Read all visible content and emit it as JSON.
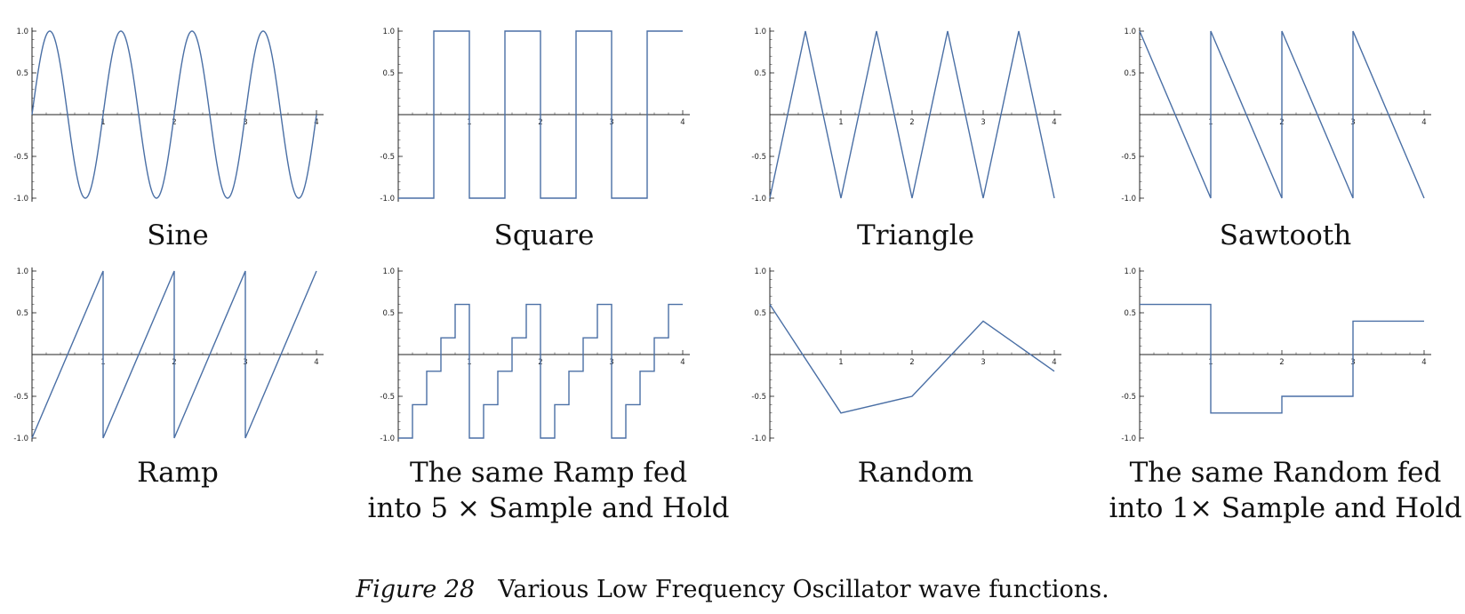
{
  "figure": {
    "label": "Figure 28",
    "caption": "Various Low Frequency Oscillator wave functions."
  },
  "style": {
    "line_color": "#4a6fa5",
    "axis_color": "#222222"
  },
  "chart_data": [
    {
      "type": "line",
      "caption_lines": [
        "Sine"
      ],
      "xlim": [
        0,
        4
      ],
      "ylim": [
        -1,
        1
      ],
      "x_ticks": [
        "1",
        "2",
        "3",
        "4"
      ],
      "y_ticks": [
        "1.0",
        "0.5",
        "-0.5",
        "-1.0"
      ],
      "function": "sin(2*pi*x)",
      "series": [
        {
          "values": []
        }
      ]
    },
    {
      "type": "line",
      "caption_lines": [
        "Square"
      ],
      "xlim": [
        0,
        4
      ],
      "ylim": [
        -1,
        1
      ],
      "x_ticks": [
        "1",
        "2",
        "3",
        "4"
      ],
      "y_ticks": [
        "1.0",
        "0.5",
        "-0.5",
        "-1.0"
      ],
      "series": [
        {
          "x": [
            0,
            0.5,
            0.5,
            1,
            1,
            1.5,
            1.5,
            2,
            2,
            2.5,
            2.5,
            3,
            3,
            3.5,
            3.5,
            4
          ],
          "y": [
            -1,
            -1,
            1,
            1,
            -1,
            -1,
            1,
            1,
            -1,
            -1,
            1,
            1,
            -1,
            -1,
            1,
            1
          ]
        }
      ]
    },
    {
      "type": "line",
      "caption_lines": [
        "Triangle"
      ],
      "xlim": [
        0,
        4
      ],
      "ylim": [
        -1,
        1
      ],
      "x_ticks": [
        "1",
        "2",
        "3",
        "4"
      ],
      "y_ticks": [
        "1.0",
        "0.5",
        "-0.5",
        "-1.0"
      ],
      "series": [
        {
          "x": [
            0,
            0.5,
            1,
            1.5,
            2,
            2.5,
            3,
            3.5,
            4
          ],
          "y": [
            -1,
            1,
            -1,
            1,
            -1,
            1,
            -1,
            1,
            -1
          ]
        }
      ]
    },
    {
      "type": "line",
      "caption_lines": [
        "Sawtooth"
      ],
      "xlim": [
        0,
        4
      ],
      "ylim": [
        -1,
        1
      ],
      "x_ticks": [
        "1",
        "2",
        "3",
        "4"
      ],
      "y_ticks": [
        "1.0",
        "0.5",
        "-0.5",
        "-1.0"
      ],
      "series": [
        {
          "x": [
            0,
            1,
            1,
            2,
            2,
            3,
            3,
            4
          ],
          "y": [
            1,
            -1,
            1,
            -1,
            1,
            -1,
            1,
            -1
          ]
        }
      ]
    },
    {
      "type": "line",
      "caption_lines": [
        "Ramp"
      ],
      "xlim": [
        0,
        4
      ],
      "ylim": [
        -1,
        1
      ],
      "x_ticks": [
        "1",
        "2",
        "3",
        "4"
      ],
      "y_ticks": [
        "1.0",
        "0.5",
        "-0.5",
        "-1.0"
      ],
      "series": [
        {
          "x": [
            0,
            1,
            1,
            2,
            2,
            3,
            3,
            4
          ],
          "y": [
            -1,
            1,
            -1,
            1,
            -1,
            1,
            -1,
            1
          ]
        }
      ]
    },
    {
      "type": "line",
      "caption_lines": [
        "The same Ramp fed",
        "into 5 × Sample and Hold"
      ],
      "xlim": [
        0,
        4
      ],
      "ylim": [
        -1,
        1
      ],
      "x_ticks": [
        "1",
        "2",
        "3",
        "4"
      ],
      "y_ticks": [
        "1.0",
        "0.5",
        "-0.5",
        "-1.0"
      ],
      "series": [
        {
          "x": [
            0,
            0.2,
            0.2,
            0.4,
            0.4,
            0.6,
            0.6,
            0.8,
            0.8,
            1,
            1,
            1.2,
            1.2,
            1.4,
            1.4,
            1.6,
            1.6,
            1.8,
            1.8,
            2,
            2,
            2.2,
            2.2,
            2.4,
            2.4,
            2.6,
            2.6,
            2.8,
            2.8,
            3,
            3,
            3.2,
            3.2,
            3.4,
            3.4,
            3.6,
            3.6,
            3.8,
            3.8,
            4
          ],
          "y": [
            -1,
            -1,
            -0.6,
            -0.6,
            -0.2,
            -0.2,
            0.2,
            0.2,
            0.6,
            0.6,
            -1,
            -1,
            -0.6,
            -0.6,
            -0.2,
            -0.2,
            0.2,
            0.2,
            0.6,
            0.6,
            -1,
            -1,
            -0.6,
            -0.6,
            -0.2,
            -0.2,
            0.2,
            0.2,
            0.6,
            0.6,
            -1,
            -1,
            -0.6,
            -0.6,
            -0.2,
            -0.2,
            0.2,
            0.2,
            0.6,
            0.6
          ]
        }
      ]
    },
    {
      "type": "line",
      "caption_lines": [
        "Random"
      ],
      "xlim": [
        0,
        4
      ],
      "ylim": [
        -1,
        1
      ],
      "x_ticks": [
        "1",
        "2",
        "3",
        "4"
      ],
      "y_ticks": [
        "1.0",
        "0.5",
        "-0.5",
        "-1.0"
      ],
      "series": [
        {
          "x": [
            0,
            1,
            2,
            3,
            4
          ],
          "y": [
            0.6,
            -0.7,
            -0.5,
            0.4,
            -0.2
          ]
        }
      ]
    },
    {
      "type": "line",
      "caption_lines": [
        "The same Random fed",
        "into 1× Sample and Hold"
      ],
      "xlim": [
        0,
        4
      ],
      "ylim": [
        -1,
        1
      ],
      "x_ticks": [
        "1",
        "2",
        "3",
        "4"
      ],
      "y_ticks": [
        "1.0",
        "0.5",
        "-0.5",
        "-1.0"
      ],
      "series": [
        {
          "x": [
            0,
            1,
            1,
            2,
            2,
            3,
            3,
            4
          ],
          "y": [
            0.6,
            0.6,
            -0.7,
            -0.7,
            -0.5,
            -0.5,
            0.4,
            0.4
          ]
        }
      ]
    }
  ]
}
